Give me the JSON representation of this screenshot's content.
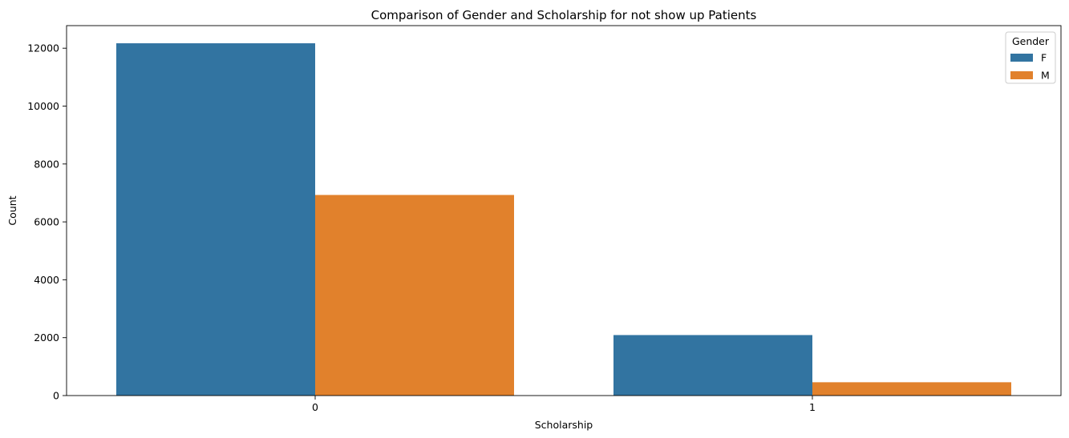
{
  "chart_data": {
    "type": "bar",
    "title": "Comparison of Gender and Scholarship for not show up Patients",
    "xlabel": "Scholarship",
    "ylabel": "Count",
    "categories": [
      "0",
      "1"
    ],
    "series": [
      {
        "name": "F",
        "color": "#3274a1",
        "values": [
          12170,
          2090
        ]
      },
      {
        "name": "M",
        "color": "#e1812c",
        "values": [
          6930,
          460
        ]
      }
    ],
    "ylim": [
      0,
      12780
    ],
    "yticks": [
      0,
      2000,
      4000,
      6000,
      8000,
      10000,
      12000
    ],
    "legend": {
      "title": "Gender",
      "placement": "top-right"
    },
    "grid": false
  }
}
